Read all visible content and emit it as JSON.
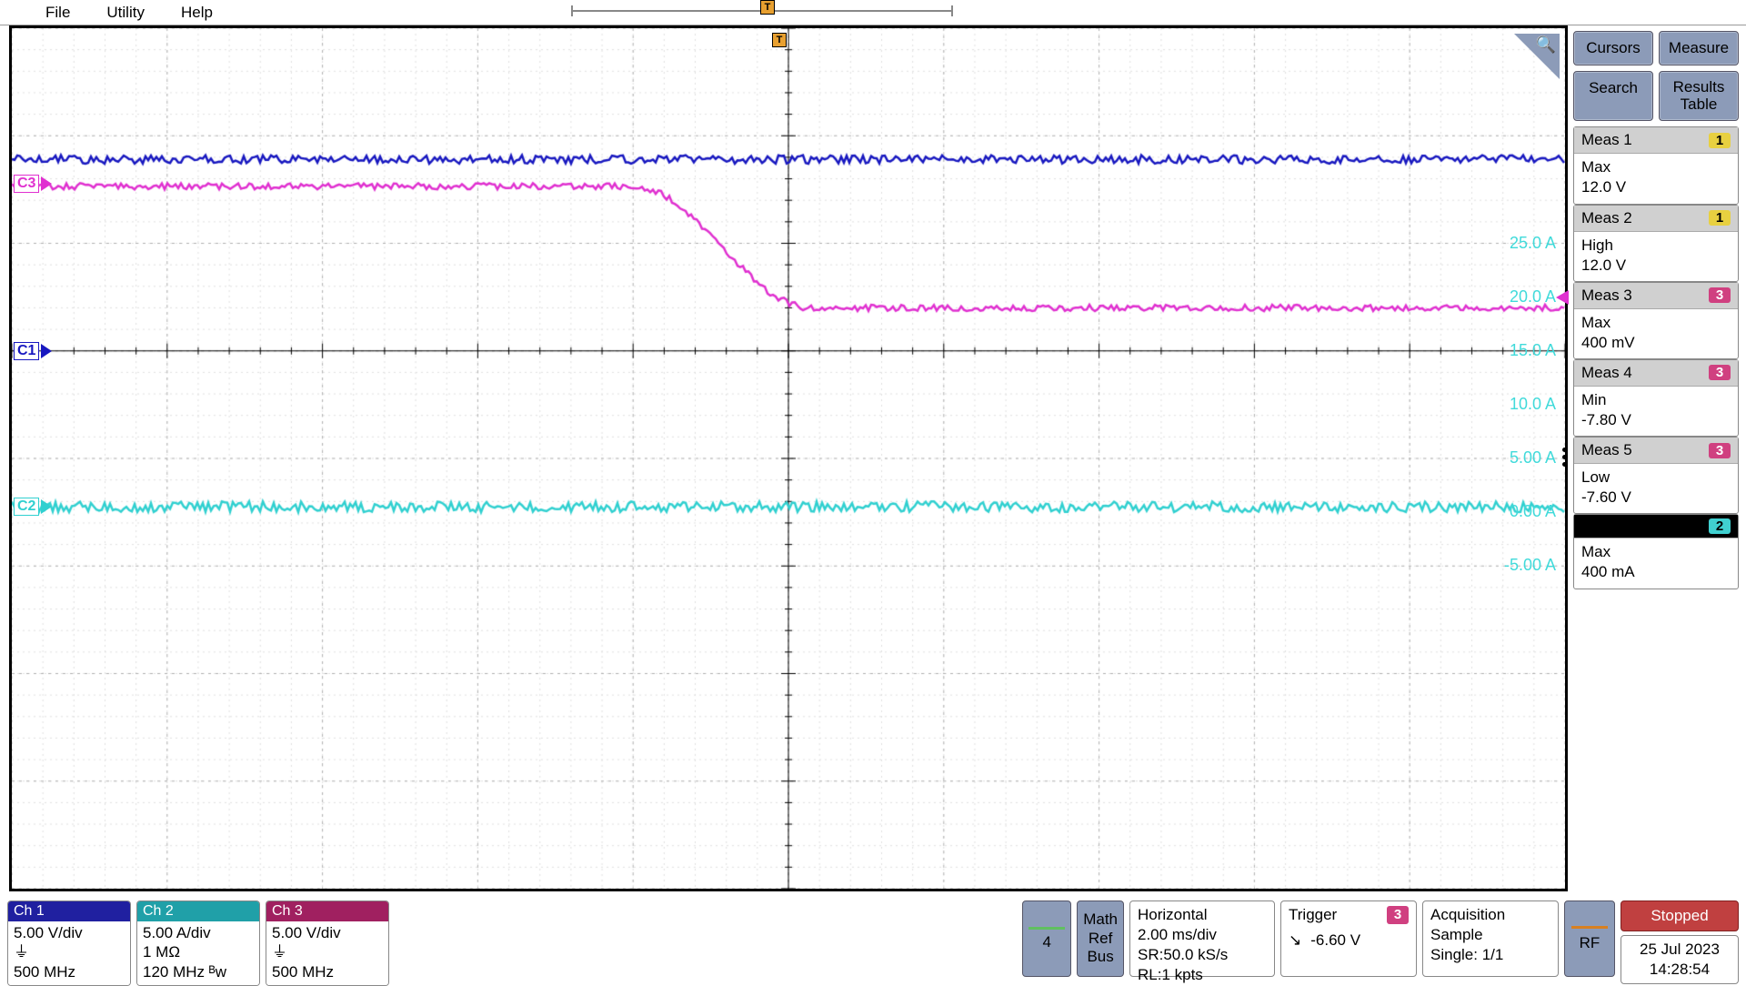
{
  "menu": {
    "file": "File",
    "utility": "Utility",
    "help": "Help"
  },
  "scope": {
    "grid": {
      "h_divs": 10,
      "v_divs": 8,
      "major_color": "#b0b0b0",
      "minor_color": "#e0e0e0",
      "tick_color": "#000"
    },
    "y_labels": [
      {
        "text": "25.0 A",
        "y_div": 2.0,
        "color": "#40dada"
      },
      {
        "text": "20.0 A",
        "y_div": 2.5,
        "color": "#40dada"
      },
      {
        "text": "15.0 A",
        "y_div": 3.0,
        "color": "#40dada"
      },
      {
        "text": "10.0 A",
        "y_div": 3.5,
        "color": "#40dada"
      },
      {
        "text": "5.00 A",
        "y_div": 4.0,
        "color": "#40dada"
      },
      {
        "text": "0.00 A",
        "y_div": 4.5,
        "color": "#40dada"
      },
      {
        "text": "-5.00 A",
        "y_div": 5.0,
        "color": "#40dada"
      }
    ],
    "channels": [
      {
        "name": "C1",
        "color": "#1818c0",
        "gnd_div": 3.0
      },
      {
        "name": "C2",
        "color": "#30d0d0",
        "gnd_div": 4.45
      },
      {
        "name": "C3",
        "color": "#e030d0",
        "gnd_div": 1.45
      }
    ],
    "trigger_arrow": {
      "y_div": 2.5,
      "color": "#e030d0"
    },
    "traces": {
      "ch1": {
        "color": "#1818c0",
        "level_div": 1.22,
        "noise": 0.04
      },
      "ch2": {
        "color": "#30d0d0",
        "level_div": 4.45,
        "noise": 0.05
      },
      "ch3": {
        "color": "#e030d0",
        "start_div": 1.47,
        "end_div": 2.6,
        "fall_start_x": 0.4,
        "fall_end_x": 0.515,
        "noise": 0.03
      }
    }
  },
  "side": {
    "cursors": "Cursors",
    "measure": "Measure",
    "search": "Search",
    "results": "Results\nTable",
    "meas": [
      {
        "title": "Meas 1",
        "badge": "1",
        "badge_bg": "#e8d040",
        "badge_fg": "#000",
        "lines": [
          "Max",
          "12.0 V"
        ]
      },
      {
        "title": "Meas 2",
        "badge": "1",
        "badge_bg": "#e8d040",
        "badge_fg": "#000",
        "lines": [
          "High",
          "12.0 V"
        ]
      },
      {
        "title": "Meas 3",
        "badge": "3",
        "badge_bg": "#d04080",
        "badge_fg": "#fff",
        "lines": [
          "Max",
          "400 mV"
        ]
      },
      {
        "title": "Meas 4",
        "badge": "3",
        "badge_bg": "#d04080",
        "badge_fg": "#fff",
        "lines": [
          "Min",
          "-7.80 V"
        ]
      },
      {
        "title": "Meas 5",
        "badge": "3",
        "badge_bg": "#d04080",
        "badge_fg": "#fff",
        "lines": [
          "Low",
          "-7.60 V"
        ]
      }
    ],
    "meas_black": {
      "badge": "2",
      "badge_bg": "#40d0d0",
      "badge_fg": "#000",
      "lines": [
        "Max",
        "400 mA"
      ]
    }
  },
  "bottom": {
    "ch1": {
      "label": "Ch 1",
      "hdr_bg": "#2020a0",
      "scale": "5.00 V/div",
      "coupling": "⏚",
      "bw": "500 MHz"
    },
    "ch2": {
      "label": "Ch 2",
      "hdr_bg": "#20a0a8",
      "scale": "5.00 A/div",
      "coupling": "1 MΩ",
      "bw": "120 MHz ᴮw"
    },
    "ch3": {
      "label": "Ch 3",
      "hdr_bg": "#a02060",
      "scale": "5.00 V/div",
      "coupling": "⏚",
      "bw": "500 MHz"
    },
    "numbox": "4",
    "math": "Math\nRef\nBus",
    "horiz": {
      "title": "Horizontal",
      "l1": "2.00 ms/div",
      "l2": "SR:50.0 kS/s",
      "l3": "RL:1 kpts"
    },
    "trig": {
      "title": "Trigger",
      "badge": "3",
      "badge_bg": "#d04080",
      "slope": "↘",
      "level": "-6.60 V"
    },
    "acq": {
      "title": "Acquisition",
      "l1": "Sample",
      "l2": "Single: 1/1"
    },
    "rf": "RF",
    "stopped": "Stopped",
    "date": "25 Jul 2023",
    "time": "14:28:54"
  }
}
